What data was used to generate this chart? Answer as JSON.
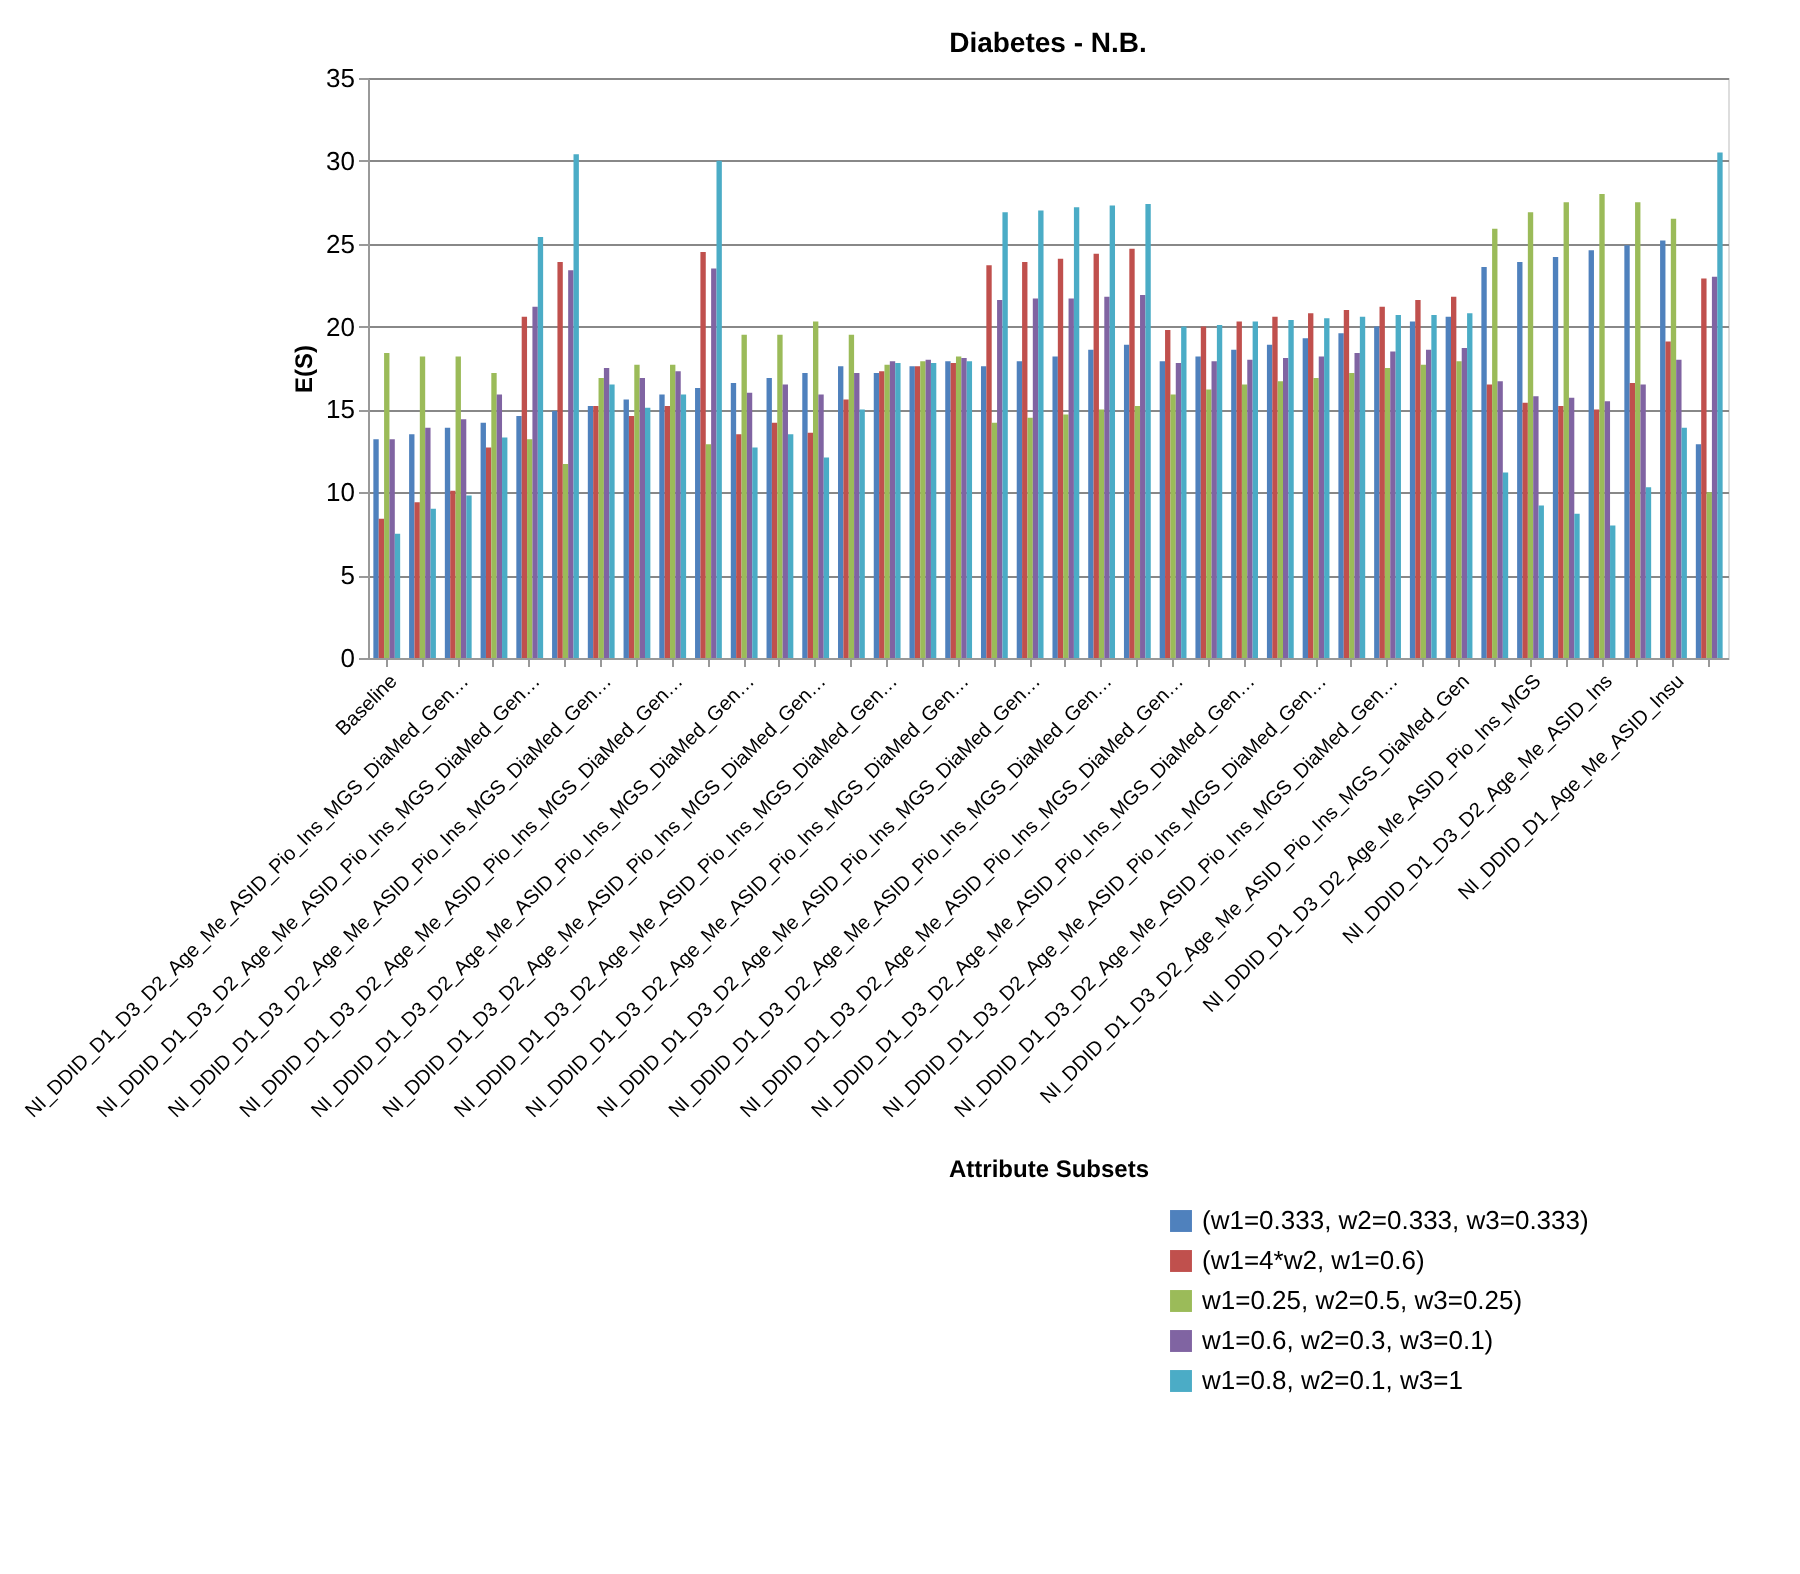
{
  "chart_data": {
    "type": "bar",
    "title": "Diabetes - N.B.",
    "xlabel": "Attribute Subsets",
    "ylabel": "E(S)",
    "categories": [
      "Baseline",
      null,
      "NI_DDID_D1_D3_D2_Age_Me_ASID_Pio_Ins_MGS_DiaMed_Gen…",
      null,
      "NI_DDID_D1_D3_D2_Age_Me_ASID_Pio_Ins_MGS_DiaMed_Gen…",
      null,
      "NI_DDID_D1_D3_D2_Age_Me_ASID_Pio_Ins_MGS_DiaMed_Gen…",
      null,
      "NI_DDID_D1_D3_D2_Age_Me_ASID_Pio_Ins_MGS_DiaMed_Gen…",
      null,
      "NI_DDID_D1_D3_D2_Age_Me_ASID_Pio_Ins_MGS_DiaMed_Gen…",
      null,
      "NI_DDID_D1_D3_D2_Age_Me_ASID_Pio_Ins_MGS_DiaMed_Gen…",
      null,
      "NI_DDID_D1_D3_D2_Age_Me_ASID_Pio_Ins_MGS_DiaMed_Gen…",
      null,
      "NI_DDID_D1_D3_D2_Age_Me_ASID_Pio_Ins_MGS_DiaMed_Gen…",
      null,
      "NI_DDID_D1_D3_D2_Age_Me_ASID_Pio_Ins_MGS_DiaMed_Gen…",
      null,
      "NI_DDID_D1_D3_D2_Age_Me_ASID_Pio_Ins_MGS_DiaMed_Gen…",
      null,
      "NI_DDID_D1_D3_D2_Age_Me_ASID_Pio_Ins_MGS_DiaMed_Gen…",
      null,
      "NI_DDID_D1_D3_D2_Age_Me_ASID_Pio_Ins_MGS_DiaMed_Gen…",
      null,
      "NI_DDID_D1_D3_D2_Age_Me_ASID_Pio_Ins_MGS_DiaMed_Gen…",
      null,
      "NI_DDID_D1_D3_D2_Age_Me_ASID_Pio_Ins_MGS_DiaMed_Gen…",
      null,
      "NI_DDID_D1_D3_D2_Age_Me_ASID_Pio_Ins_MGS_DiaMed_Gen",
      null,
      "NI_DDID_D1_D3_D2_Age_Me_ASID_Pio_Ins_MGS",
      null,
      "NI_DDID_D1_D3_D2_Age_Me_ASID_Ins",
      null,
      "NI_DDID_D1_Age_Me_ASID_Insu",
      null
    ],
    "series": [
      {
        "name": "(w1=0.333, w2=0.333, w3=0.333)",
        "color": "#4f81bd",
        "values": [
          13.2,
          13.5,
          13.9,
          14.2,
          14.6,
          14.9,
          15.2,
          15.6,
          15.9,
          16.3,
          16.6,
          16.9,
          17.2,
          17.6,
          17.2,
          17.6,
          17.9,
          17.6,
          17.9,
          18.2,
          18.6,
          18.9,
          17.9,
          18.2,
          18.6,
          18.9,
          19.3,
          19.6,
          20.0,
          20.3,
          20.6,
          23.6,
          23.9,
          24.2,
          24.6,
          24.9,
          25.2,
          12.9
        ]
      },
      {
        "name": "(w1=4*w2, w1=0.6)",
        "color": "#c0504d",
        "values": [
          8.4,
          9.4,
          10.1,
          12.7,
          20.6,
          23.9,
          15.2,
          14.6,
          15.2,
          24.5,
          13.5,
          14.2,
          13.6,
          15.6,
          17.3,
          17.6,
          17.8,
          23.7,
          23.9,
          24.1,
          24.4,
          24.7,
          19.8,
          20.0,
          20.3,
          20.6,
          20.8,
          21.0,
          21.2,
          21.6,
          21.8,
          16.5,
          15.4,
          15.2,
          15.0,
          16.6,
          19.1,
          22.9
        ]
      },
      {
        "name": "w1=0.25, w2=0.5, w3=0.25)",
        "color": "#9bbb59",
        "values": [
          18.4,
          18.2,
          18.2,
          17.2,
          13.2,
          11.7,
          16.9,
          17.7,
          17.7,
          12.9,
          19.5,
          19.5,
          20.3,
          19.5,
          17.7,
          17.9,
          18.2,
          14.2,
          14.5,
          14.7,
          15.0,
          15.2,
          15.9,
          16.2,
          16.5,
          16.7,
          16.9,
          17.2,
          17.5,
          17.7,
          17.9,
          25.9,
          26.9,
          27.5,
          28.0,
          27.5,
          26.5,
          10.0
        ]
      },
      {
        "name": "w1=0.6, w2=0.3, w3=0.1)",
        "color": "#8064a2",
        "values": [
          13.2,
          13.9,
          14.4,
          15.9,
          21.2,
          23.4,
          17.5,
          16.9,
          17.3,
          23.5,
          16.0,
          16.5,
          15.9,
          17.2,
          17.9,
          18.0,
          18.1,
          21.6,
          21.7,
          21.7,
          21.8,
          21.9,
          17.8,
          17.9,
          18.0,
          18.1,
          18.2,
          18.4,
          18.5,
          18.6,
          18.7,
          16.7,
          15.8,
          15.7,
          15.5,
          16.5,
          18.0,
          23.0
        ]
      },
      {
        "name": "w1=0.8, w2=0.1, w3=1",
        "color": "#4bacc6",
        "values": [
          7.5,
          9.0,
          9.8,
          13.3,
          25.4,
          30.4,
          16.5,
          15.1,
          15.9,
          30.0,
          12.7,
          13.5,
          12.1,
          15.0,
          17.8,
          17.8,
          17.9,
          26.9,
          27.0,
          27.2,
          27.3,
          27.4,
          20.0,
          20.1,
          20.3,
          20.4,
          20.5,
          20.6,
          20.7,
          20.7,
          20.8,
          11.2,
          9.2,
          8.7,
          8.0,
          10.3,
          13.9,
          30.5
        ]
      }
    ],
    "ylim": [
      0,
      35
    ],
    "yticks": [
      0,
      5,
      10,
      15,
      20,
      25,
      30,
      35
    ],
    "grid": "y",
    "legend": "bottom right"
  }
}
